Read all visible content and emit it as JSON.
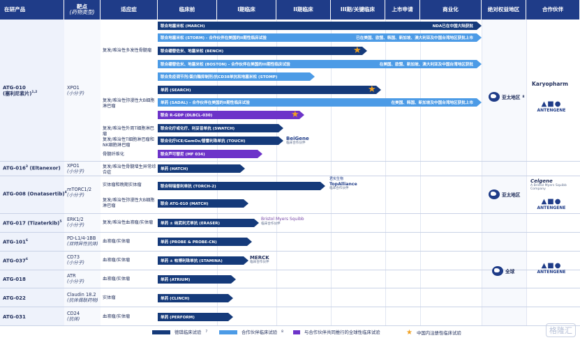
{
  "headers": {
    "product": "在研产品",
    "target": "靶点",
    "target_sub": "(药物类型)",
    "indication": "适应症",
    "preclinical": "临床前",
    "phase1": "I期临床",
    "phase2": "II期临床",
    "phase3": "III期/关键临床",
    "nda": "上市申请",
    "commercial": "商业化",
    "rights": "绝对权益地区",
    "partner": "合作伙伴"
  },
  "assets": [
    {
      "name": "ATG-010",
      "sub": "(塞利尼索片)",
      "sup": "1,2",
      "target": "XPO1",
      "type": "(小分子)"
    },
    {
      "name": "ATG-016",
      "sup": "3",
      "sub": "(Eltanexor)",
      "target": "XPO1",
      "type": "(小分子)"
    },
    {
      "name": "ATG-008",
      "sub": "(Onatasertib)",
      "sup": "4",
      "target": "mTORC1/2",
      "type": "(小分子)"
    },
    {
      "name": "ATG-017",
      "sub": "(Tizaterkib)",
      "sup": "5",
      "target": "ERK1/2",
      "type": "(小分子)"
    },
    {
      "name": "ATG-101",
      "sup": "6",
      "target": "PD-L1/4-1BB",
      "type": "(双特异性抗体)"
    },
    {
      "name": "ATG-037",
      "sup": "6",
      "target": "CD73",
      "type": "(小分子)"
    },
    {
      "name": "ATG-018",
      "target": "ATR",
      "type": "(小分子)"
    },
    {
      "name": "ATG-022",
      "target": "Claudin 18.2",
      "type": "(抗体偶联药物)"
    },
    {
      "name": "ATG-031",
      "target": "CD24",
      "type": "(抗体)"
    }
  ],
  "indications": {
    "mm": "复发/难治性多发性骨髓瘤",
    "dlbcl": "复发/难治性弥漫性大B细胞淋巴瘤",
    "ptcl": "复发/难治性外周T细胞淋巴瘤",
    "tnk": "复发/难治性T细胞淋巴瘤和NK细胞淋巴瘤",
    "mf": "骨髓纤维化",
    "mds": "复发/难治性骨髓增生异常综合症",
    "solid": "实体瘤和晚期实体瘤",
    "dlbcl2": "复发/难治性弥漫性大B细胞淋巴瘤",
    "erk": "复发/难治性血液瘤/实体瘤",
    "heme1": "血液瘤/实体瘤",
    "heme2": "血液瘤/实体瘤",
    "heme3": "血液瘤/实体瘤",
    "solid2": "实体瘤",
    "heme4": "血液瘤/实体瘤"
  },
  "bars": {
    "march": "联合地塞米松 (MARCH)",
    "march_note": "NDA已在中国大陆获批",
    "storm": "联合地塞米松 (STORM) - 合作伙伴在美国的II期性临床试验",
    "storm_note": "已在美国、欧盟、韩国、新加坡、澳大利亚及中国台湾地区获批上市",
    "bench": "联合硼替佐米、地塞米松 (BENCH)",
    "boston": "联合硼替佐米、地塞米松 (BOSTON) - 合作伙伴在美国的III期性临床试验",
    "boston_note": "在美国、欧盟、新加坡、澳大利亚及中国台湾地区获批",
    "stomp": "联合免疫调节剂/蛋白酶抑制剂/抗CD38单抗和地塞米松 (STOMP)",
    "search": "单药 (SEARCH)",
    "sadal": "单药 (SADAL) - 合作伙伴在美国的II期性临床试验",
    "sadal_note": "在美国、韩国、新加坡及中国台湾地区获批上市",
    "rgdp": "联合 R-GDP (DLBCL-030)",
    "swatch": "联合化疗或化疗、利妥昔单抗 (SWATCH)",
    "touch": "联合化疗ICE/GemOx/替雷利珠单抗 (TOUCH)",
    "mf034": "联合芦可替尼 (MF 034)",
    "hatch": "单药 (HATCH)",
    "torch": "联合特瑞普利单抗 (TORCH-2)",
    "match": "联合 ATG-010 (MATCH)",
    "eraser": "单药 ± 纳武利尤单抗 (ERASER)",
    "probe": "单药 (PROBE & PROBE-CN)",
    "stamina": "单药 ± 帕博利珠单抗 (STAMINA)",
    "atrium": "单药 (ATRIUM)",
    "clinch": "单药 (CLINCH)",
    "perform": "单药 (PERFORM)"
  },
  "partners": {
    "beigene": "BeiGene",
    "beigene_sub": "临床合作伙伴",
    "topalliance": "TopAlliance",
    "topalliance_sub": "临床合作伙伴",
    "topalliance_cn": "君实生物",
    "bms": "Bristol Myers Squibb",
    "bms_sub": "临床合作伙伴",
    "merck": "MERCK",
    "merck_sub": "临床合作伙伴",
    "karyopharm": "Karyopharm",
    "celgene": "Celgene",
    "celgene_sub": "A Bristol Myers Squibb Company",
    "antengene": "ANTENGENE"
  },
  "regions": {
    "apac1": "亚太地区",
    "apac1_sup": "8",
    "apac2": "亚太地区",
    "global": "全球"
  },
  "legend": {
    "dark": "德琪临床试验",
    "dark_sup": "7",
    "light": "合作伙伴临床试验",
    "light_sup": "8",
    "purple": "与合作伙伴共同推行的全球性临床试验",
    "star": "中国内注册性临床试验"
  },
  "colors": {
    "header": "#1f3c88",
    "dark_bar": "#153a7a",
    "light_bar": "#4c9be6",
    "purple_bar": "#6d34c9",
    "star": "#f0a020"
  },
  "watermark": "格隆汇"
}
